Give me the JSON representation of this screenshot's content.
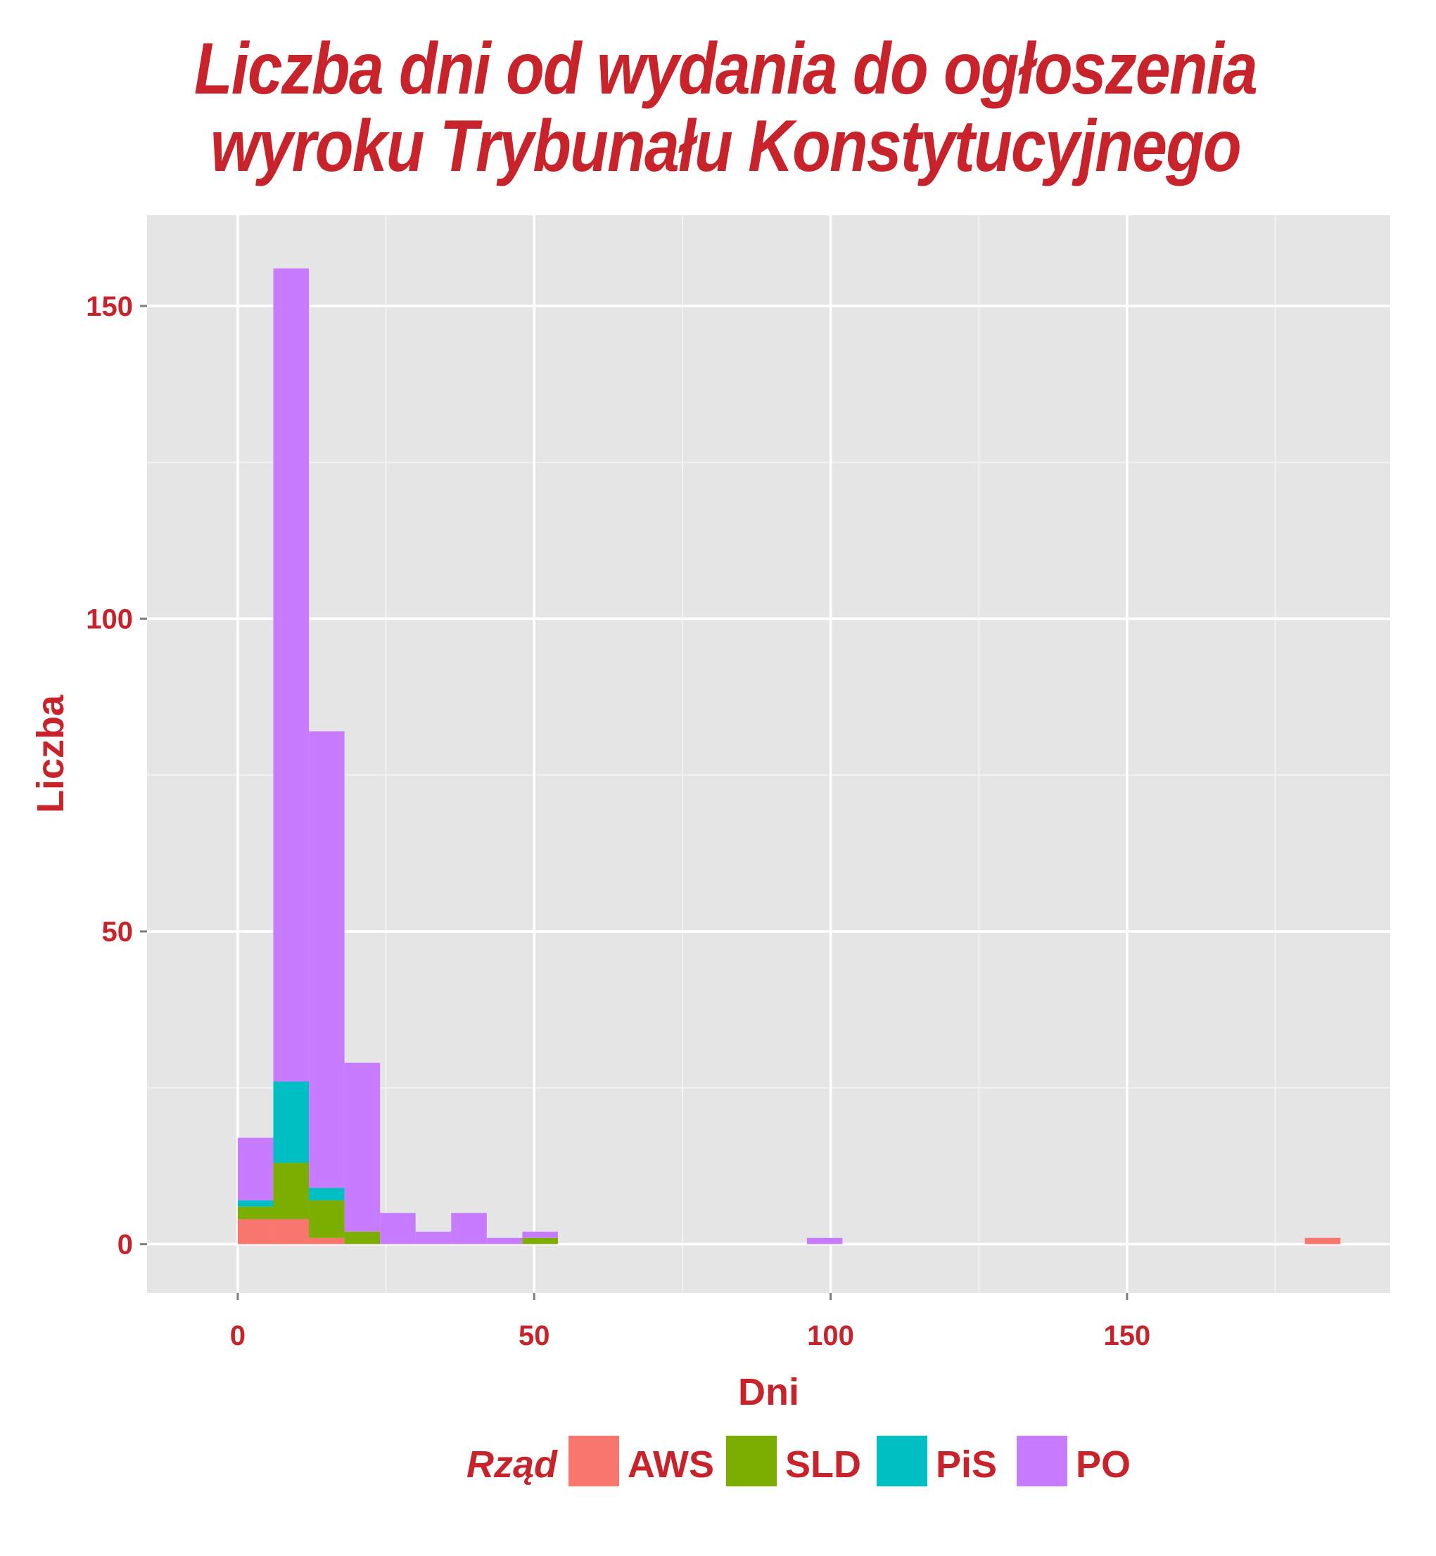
{
  "title_lines": [
    "Liczba dni od wydania do ogłoszenia",
    "wyroku Trybunału Konstytucyjnego"
  ],
  "colors": {
    "text": "#c8232a",
    "panel": "#e5e5e5",
    "grid_major": "#ffffff",
    "grid_minor": "#f2f2f2",
    "AWS": "#f8766d",
    "SLD": "#7cae00",
    "PiS": "#00bfc4",
    "PO": "#c77cff"
  },
  "chart_data": {
    "type": "bar",
    "subtype": "stacked-histogram",
    "title": "Liczba dni od wydania do ogłoszenia wyroku Trybunału Konstytucyjnego",
    "xlabel": "Dni",
    "ylabel": "Liczba",
    "xlim": [
      -15.3,
      194.4
    ],
    "ylim": [
      -7.8,
      164.5
    ],
    "x_ticks": [
      0,
      50,
      100,
      150
    ],
    "x_tick_labels": [
      "0",
      "50",
      "100",
      "150"
    ],
    "y_ticks": [
      0,
      50,
      100,
      150
    ],
    "y_tick_labels": [
      "0",
      "50",
      "100",
      "150"
    ],
    "bin_width": 6,
    "bin_starts": [
      0,
      6,
      12,
      18,
      24,
      30,
      36,
      42,
      48,
      96,
      180
    ],
    "series": [
      {
        "name": "AWS",
        "values": [
          4,
          4,
          1,
          0,
          0,
          0,
          0,
          0,
          0,
          0,
          1
        ]
      },
      {
        "name": "SLD",
        "values": [
          2,
          9,
          6,
          2,
          0,
          0,
          0,
          0,
          1,
          0,
          0
        ]
      },
      {
        "name": "PiS",
        "values": [
          1,
          13,
          2,
          0,
          0,
          0,
          0,
          0,
          0,
          0,
          0
        ]
      },
      {
        "name": "PO",
        "values": [
          10,
          130,
          73,
          27,
          5,
          2,
          5,
          1,
          1,
          1,
          0
        ]
      }
    ],
    "legend": {
      "title": "Rząd",
      "position": "bottom",
      "items": [
        "AWS",
        "SLD",
        "PiS",
        "PO"
      ]
    },
    "grid": true
  }
}
